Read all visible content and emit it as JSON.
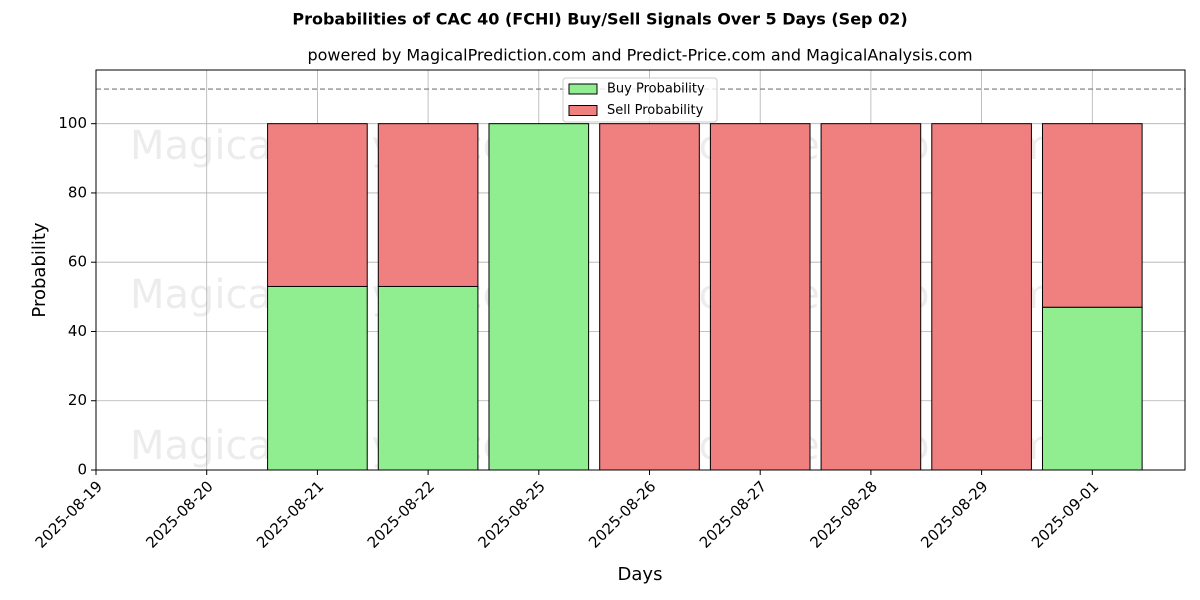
{
  "chart_data": {
    "type": "stacked_bar",
    "title": "Probabilities of CAC 40 (FCHI) Buy/Sell Signals Over 5 Days (Sep 02)",
    "subtitle": "powered by MagicalPrediction.com and Predict-Price.com and MagicalAnalysis.com",
    "xlabel": "Days",
    "ylabel": "Probability",
    "categories": [
      "2025-08-19",
      "2025-08-20",
      "2025-08-21",
      "2025-08-22",
      "2025-08-25",
      "2025-08-26",
      "2025-08-27",
      "2025-08-28",
      "2025-08-29",
      "2025-09-01"
    ],
    "series": [
      {
        "name": "Buy Probability",
        "color": "#90ee90",
        "values": [
          null,
          null,
          53,
          53,
          100,
          0,
          0,
          0,
          0,
          47
        ]
      },
      {
        "name": "Sell Probability",
        "color": "#f08080",
        "values": [
          null,
          null,
          47,
          47,
          0,
          100,
          100,
          100,
          100,
          53
        ]
      }
    ],
    "ylim": [
      0,
      115.5
    ],
    "yticks": [
      0,
      20,
      40,
      60,
      80,
      100
    ],
    "reference_line": 110,
    "grid": true,
    "legend": "upper center",
    "watermarks": [
      "MagicalAnalysis.com",
      "MagicalPrediction.com",
      "MagicalAnalysis.com",
      "MagicalPrediction.com",
      "MagicalAnalysis.com",
      "MagicalPrediction.com"
    ]
  }
}
